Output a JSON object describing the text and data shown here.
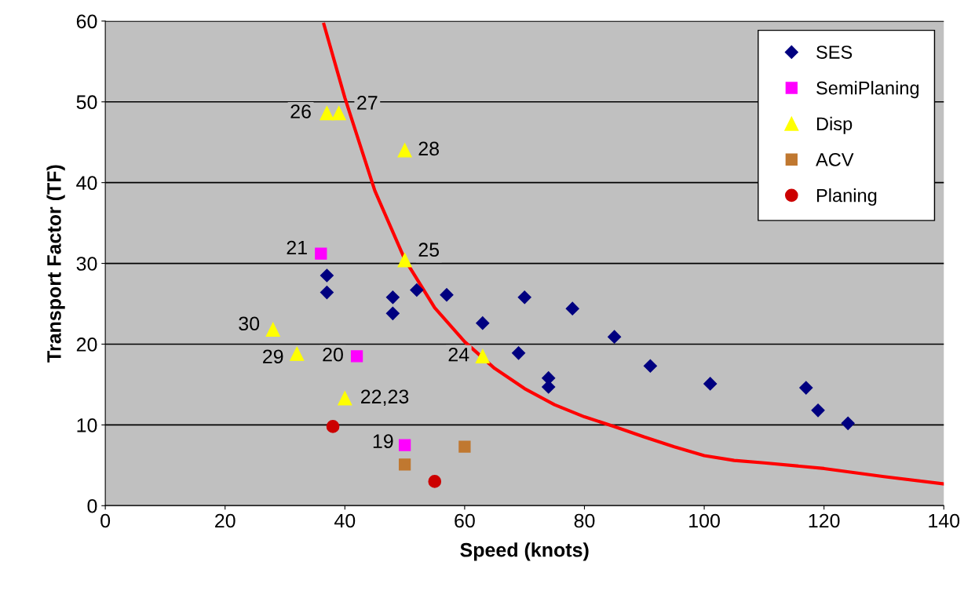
{
  "chart_data": {
    "type": "scatter",
    "xlabel": "Speed (knots)",
    "ylabel": "Transport Factor (TF)",
    "xlim": [
      0,
      140
    ],
    "xticks": [
      0,
      20,
      40,
      60,
      80,
      100,
      120,
      140
    ],
    "ylim": [
      0,
      60
    ],
    "yticks": [
      0,
      10,
      20,
      30,
      40,
      50,
      60
    ],
    "grid": "y",
    "legend": "top right",
    "series": [
      {
        "name": "SES",
        "color": "#000080",
        "marker": "diamond",
        "x": [
          37,
          37,
          48,
          48,
          52,
          57,
          63,
          69,
          70,
          74,
          74,
          78,
          85,
          91,
          101,
          117,
          119,
          124
        ],
        "values": [
          28.5,
          26.4,
          25.8,
          23.8,
          26.7,
          26.1,
          22.6,
          18.9,
          25.8,
          15.8,
          14.7,
          24.4,
          20.9,
          17.3,
          15.1,
          14.6,
          11.8,
          10.2
        ]
      },
      {
        "name": "SemiPlaning",
        "color": "#ff00ff",
        "marker": "square",
        "x": [
          36,
          42,
          50
        ],
        "values": [
          31.2,
          18.5,
          7.5
        ]
      },
      {
        "name": "Disp",
        "color": "#ffff00",
        "marker": "triangle",
        "x": [
          37,
          39,
          50,
          50,
          28,
          32,
          40,
          63
        ],
        "values": [
          48.6,
          48.6,
          44.0,
          30.4,
          21.8,
          18.8,
          13.3,
          18.5
        ]
      },
      {
        "name": "ACV",
        "color": "#c07830",
        "marker": "square",
        "x": [
          50,
          60
        ],
        "values": [
          5.1,
          7.3
        ]
      },
      {
        "name": "Planing",
        "color": "#cc0000",
        "marker": "circle",
        "x": [
          38,
          55
        ],
        "values": [
          9.8,
          3.0
        ]
      },
      {
        "type": "line",
        "color": "#ff0000",
        "marker": "none",
        "x": [
          36.5,
          40,
          45,
          50,
          55,
          60,
          65,
          70,
          75,
          80,
          85,
          90,
          95,
          100,
          105,
          110,
          120,
          130,
          140
        ],
        "values": [
          59.6,
          50.5,
          39,
          30.5,
          24.5,
          20.3,
          17,
          14.5,
          12.5,
          11,
          9.8,
          8.5,
          7.3,
          6.2,
          5.6,
          5.3,
          4.6,
          3.6,
          2.7
        ]
      }
    ],
    "annotations": [
      {
        "text": "26",
        "x": 37,
        "y": 48.6
      },
      {
        "text": "27",
        "x": 39,
        "y": 48.6
      },
      {
        "text": "28",
        "x": 50,
        "y": 44.0
      },
      {
        "text": "21",
        "x": 36,
        "y": 31.2
      },
      {
        "text": "25",
        "x": 50,
        "y": 30.4
      },
      {
        "text": "30",
        "x": 28,
        "y": 21.8
      },
      {
        "text": "29",
        "x": 32,
        "y": 18.8
      },
      {
        "text": "20",
        "x": 42,
        "y": 18.5
      },
      {
        "text": "24",
        "x": 63,
        "y": 18.5
      },
      {
        "text": "22,23",
        "x": 40,
        "y": 13.3
      },
      {
        "text": "19",
        "x": 50,
        "y": 7.5
      }
    ]
  }
}
